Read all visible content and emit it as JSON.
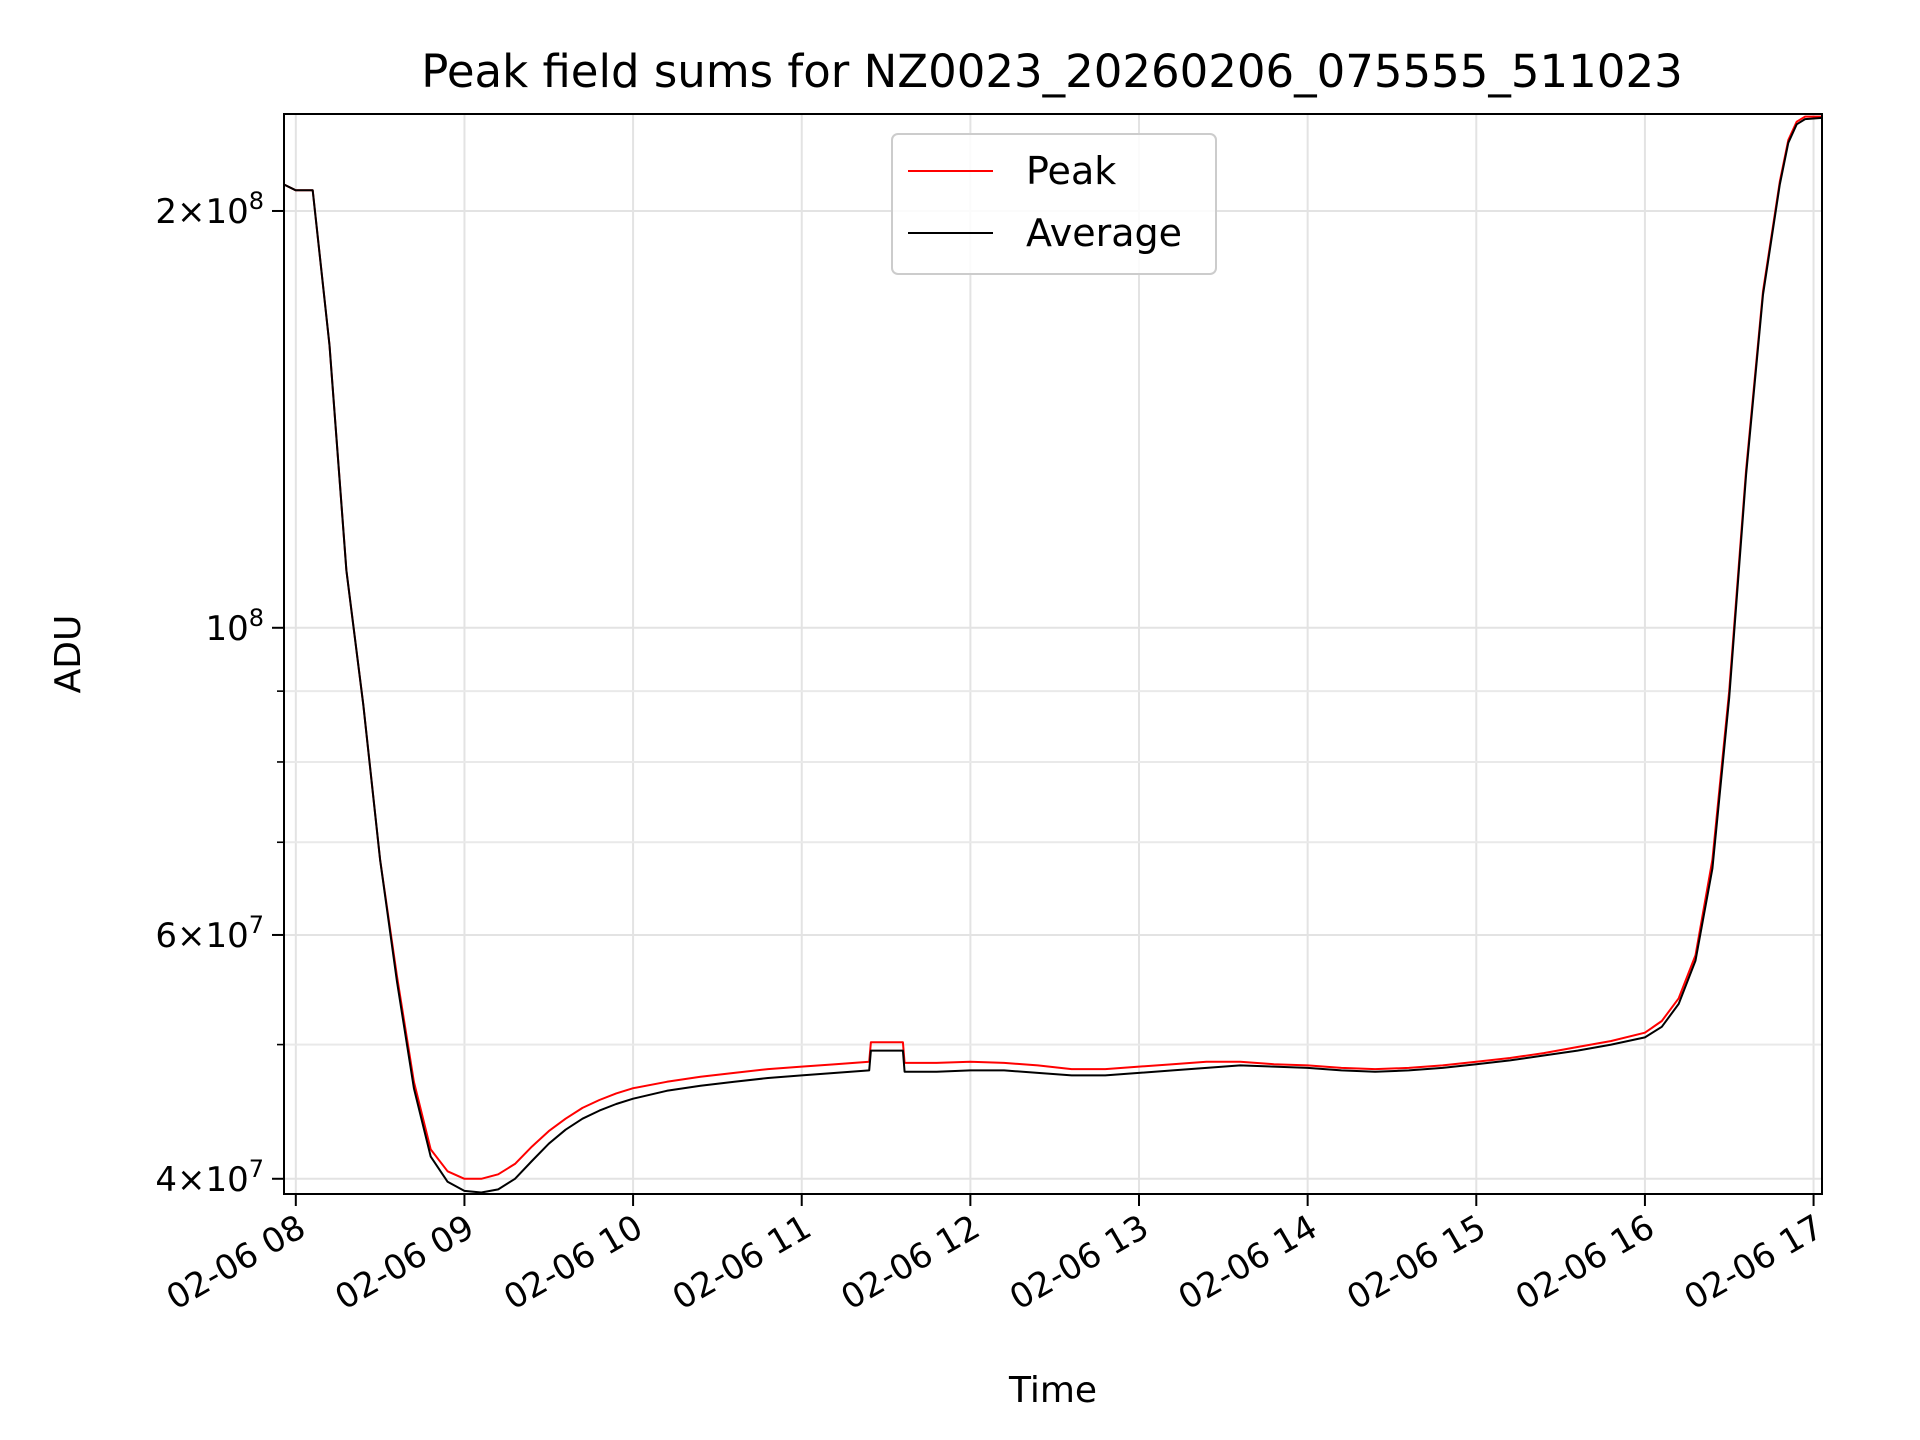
{
  "chart_data": {
    "type": "line",
    "title": "Peak field sums for NZ0023_20260206_075555_511023",
    "xlabel": "Time",
    "ylabel": "ADU",
    "yscale": "log",
    "x_unit": "hour of day 2026-02-06",
    "xlim": [
      7.93,
      17.05
    ],
    "ylim": [
      39000000,
      235000000
    ],
    "grid": true,
    "legend_position": "upper center",
    "x_ticks": [
      {
        "value": 8,
        "label": "02-06 08"
      },
      {
        "value": 9,
        "label": "02-06 09"
      },
      {
        "value": 10,
        "label": "02-06 10"
      },
      {
        "value": 11,
        "label": "02-06 11"
      },
      {
        "value": 12,
        "label": "02-06 12"
      },
      {
        "value": 13,
        "label": "02-06 13"
      },
      {
        "value": 14,
        "label": "02-06 14"
      },
      {
        "value": 15,
        "label": "02-06 15"
      },
      {
        "value": 16,
        "label": "02-06 16"
      },
      {
        "value": 17,
        "label": "02-06 17"
      }
    ],
    "y_major_ticks": [
      {
        "value": 40000000,
        "mantissa": "4",
        "exponent": "7"
      },
      {
        "value": 60000000,
        "mantissa": "6",
        "exponent": "7"
      },
      {
        "value": 100000000,
        "mantissa": "",
        "exponent": "8"
      },
      {
        "value": 200000000,
        "mantissa": "2",
        "exponent": "8"
      }
    ],
    "y_minor_ticks": [
      50000000,
      70000000,
      80000000,
      90000000
    ],
    "series": [
      {
        "name": "Peak",
        "color": "#ff0000",
        "x": [
          7.93,
          8.0,
          8.1,
          8.2,
          8.3,
          8.4,
          8.5,
          8.6,
          8.7,
          8.8,
          8.9,
          9.0,
          9.1,
          9.2,
          9.3,
          9.4,
          9.5,
          9.6,
          9.7,
          9.8,
          9.9,
          10.0,
          10.2,
          10.4,
          10.6,
          10.8,
          11.0,
          11.2,
          11.4,
          11.41,
          11.6,
          11.61,
          11.8,
          12.0,
          12.2,
          12.4,
          12.6,
          12.8,
          13.0,
          13.2,
          13.4,
          13.6,
          13.8,
          14.0,
          14.2,
          14.4,
          14.6,
          14.8,
          15.0,
          15.2,
          15.4,
          15.6,
          15.8,
          16.0,
          16.1,
          16.2,
          16.3,
          16.4,
          16.5,
          16.6,
          16.7,
          16.8,
          16.85,
          16.9,
          16.95,
          17.05
        ],
        "y": [
          209000000,
          207000000,
          207000000,
          160000000,
          110000000,
          88000000,
          68000000,
          56000000,
          47000000,
          42000000,
          40500000,
          40000000,
          40000000,
          40300000,
          41000000,
          42200000,
          43300000,
          44200000,
          45000000,
          45600000,
          46100000,
          46500000,
          47000000,
          47400000,
          47700000,
          48000000,
          48200000,
          48400000,
          48600000,
          50200000,
          50200000,
          48500000,
          48500000,
          48600000,
          48500000,
          48300000,
          48000000,
          48000000,
          48200000,
          48400000,
          48600000,
          48600000,
          48400000,
          48300000,
          48100000,
          48000000,
          48100000,
          48300000,
          48600000,
          48900000,
          49300000,
          49800000,
          50300000,
          51000000,
          52000000,
          54000000,
          58000000,
          68000000,
          90000000,
          130000000,
          175000000,
          210000000,
          225000000,
          232000000,
          234000000,
          234000000
        ]
      },
      {
        "name": "Average",
        "color": "#000000",
        "x": [
          7.93,
          8.0,
          8.1,
          8.2,
          8.3,
          8.4,
          8.5,
          8.6,
          8.7,
          8.8,
          8.9,
          9.0,
          9.1,
          9.2,
          9.3,
          9.4,
          9.5,
          9.6,
          9.7,
          9.8,
          9.9,
          10.0,
          10.2,
          10.4,
          10.6,
          10.8,
          11.0,
          11.2,
          11.4,
          11.41,
          11.6,
          11.61,
          11.8,
          12.0,
          12.2,
          12.4,
          12.6,
          12.8,
          13.0,
          13.2,
          13.4,
          13.6,
          13.8,
          14.0,
          14.2,
          14.4,
          14.6,
          14.8,
          15.0,
          15.2,
          15.4,
          15.6,
          15.8,
          16.0,
          16.1,
          16.2,
          16.3,
          16.4,
          16.5,
          16.6,
          16.7,
          16.8,
          16.85,
          16.9,
          16.95,
          17.05
        ],
        "y": [
          209000000,
          207000000,
          207000000,
          160000000,
          110000000,
          88000000,
          68000000,
          55500000,
          46500000,
          41500000,
          39800000,
          39200000,
          39100000,
          39300000,
          40000000,
          41200000,
          42400000,
          43400000,
          44200000,
          44800000,
          45300000,
          45700000,
          46300000,
          46700000,
          47000000,
          47300000,
          47500000,
          47700000,
          47900000,
          49500000,
          49500000,
          47800000,
          47800000,
          47900000,
          47900000,
          47700000,
          47500000,
          47500000,
          47700000,
          47900000,
          48100000,
          48300000,
          48200000,
          48100000,
          47900000,
          47800000,
          47900000,
          48100000,
          48400000,
          48700000,
          49100000,
          49500000,
          50000000,
          50600000,
          51500000,
          53500000,
          57500000,
          67000000,
          89000000,
          129000000,
          174000000,
          209000000,
          224000000,
          231000000,
          233000000,
          233500000
        ]
      }
    ]
  }
}
